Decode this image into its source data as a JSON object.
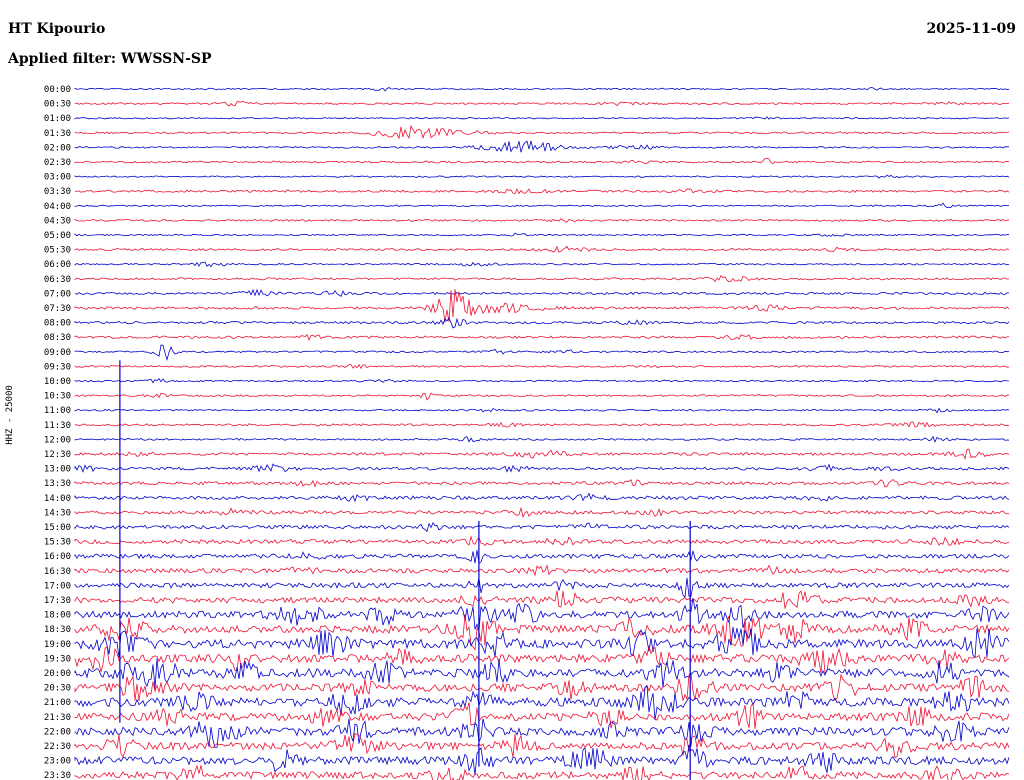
{
  "header": {
    "station": "HT Kipourio",
    "date": "2025-11-09",
    "filter_label": "Applied filter: WWSSN-SP"
  },
  "axis": {
    "left_label": "HHZ - 25000"
  },
  "colors": {
    "blue": "#0000cc",
    "red": "#ee1133",
    "text": "#000000",
    "background": "#ffffff"
  },
  "chart_data": {
    "type": "line",
    "kind": "helicorder-seismogram",
    "title": "HT Kipourio",
    "station": "HT Kipourio",
    "channel": "HHZ",
    "scale": "25000",
    "date": "2025-11-09",
    "filter": "WWSSN-SP",
    "row_interval_minutes": 30,
    "legend": "alternating blue/red half-hour traces, 00:00 top to 23:30 bottom",
    "rows": [
      {
        "label": "00:00",
        "color": "blue",
        "amp": 0.7,
        "events": [
          [
            0.33,
            10,
            1.2
          ],
          [
            0.85,
            8,
            1.0
          ]
        ]
      },
      {
        "label": "00:30",
        "color": "red",
        "amp": 0.9,
        "events": [
          [
            0.17,
            10,
            2.2
          ],
          [
            0.58,
            14,
            1.3
          ],
          [
            0.93,
            10,
            1.4
          ]
        ]
      },
      {
        "label": "01:00",
        "color": "blue",
        "amp": 0.7,
        "events": [
          [
            0.74,
            8,
            1.1
          ]
        ]
      },
      {
        "label": "01:30",
        "color": "red",
        "amp": 0.9,
        "events": [
          [
            0.355,
            22,
            5.5
          ],
          [
            0.4,
            30,
            2.0
          ]
        ]
      },
      {
        "label": "02:00",
        "color": "blue",
        "amp": 0.8,
        "events": [
          [
            0.475,
            25,
            6.5
          ],
          [
            0.6,
            18,
            2.0
          ]
        ]
      },
      {
        "label": "02:30",
        "color": "red",
        "amp": 0.9,
        "events": [
          [
            0.74,
            4,
            4.5
          ],
          [
            0.6,
            12,
            1.2
          ]
        ]
      },
      {
        "label": "03:00",
        "color": "blue",
        "amp": 0.7,
        "events": [
          [
            0.87,
            8,
            1.8
          ]
        ]
      },
      {
        "label": "03:30",
        "color": "red",
        "amp": 1.1,
        "events": [
          [
            0.48,
            20,
            1.6
          ],
          [
            0.66,
            12,
            1.4
          ]
        ]
      },
      {
        "label": "04:00",
        "color": "blue",
        "amp": 0.7,
        "events": [
          [
            0.93,
            7,
            2.2
          ]
        ]
      },
      {
        "label": "04:30",
        "color": "red",
        "amp": 0.9,
        "events": [
          [
            0.52,
            10,
            1.3
          ]
        ]
      },
      {
        "label": "05:00",
        "color": "blue",
        "amp": 0.7,
        "events": [
          [
            0.47,
            9,
            1.4
          ],
          [
            0.81,
            8,
            1.3
          ]
        ]
      },
      {
        "label": "05:30",
        "color": "red",
        "amp": 1.0,
        "events": [
          [
            0.525,
            14,
            2.6
          ],
          [
            0.82,
            10,
            1.8
          ]
        ]
      },
      {
        "label": "06:00",
        "color": "blue",
        "amp": 0.8,
        "events": [
          [
            0.145,
            10,
            2.2
          ],
          [
            0.43,
            12,
            1.8
          ]
        ]
      },
      {
        "label": "06:30",
        "color": "red",
        "amp": 1.0,
        "events": [
          [
            0.7,
            14,
            3.5
          ]
        ]
      },
      {
        "label": "07:00",
        "color": "blue",
        "amp": 1.1,
        "events": [
          [
            0.195,
            11,
            2.6
          ],
          [
            0.28,
            9,
            2.2
          ]
        ]
      },
      {
        "label": "07:30",
        "color": "red",
        "amp": 1.3,
        "events": [
          [
            0.405,
            12,
            17
          ],
          [
            0.45,
            30,
            4.0
          ],
          [
            0.74,
            12,
            2.2
          ]
        ]
      },
      {
        "label": "08:00",
        "color": "blue",
        "amp": 1.1,
        "events": [
          [
            0.405,
            10,
            4.5
          ],
          [
            0.6,
            12,
            1.8
          ]
        ]
      },
      {
        "label": "08:30",
        "color": "red",
        "amp": 1.2,
        "events": [
          [
            0.25,
            10,
            2.2
          ],
          [
            0.71,
            10,
            2.2
          ]
        ]
      },
      {
        "label": "09:00",
        "color": "blue",
        "amp": 0.9,
        "events": [
          [
            0.095,
            6,
            8.5
          ],
          [
            0.45,
            9,
            1.8
          ],
          [
            0.525,
            9,
            1.8
          ]
        ]
      },
      {
        "label": "09:30",
        "color": "red",
        "amp": 0.9,
        "events": [
          [
            0.3,
            9,
            1.5
          ]
        ]
      },
      {
        "label": "10:00",
        "color": "blue",
        "amp": 0.8,
        "events": [
          [
            0.09,
            8,
            1.8
          ],
          [
            0.33,
            8,
            1.4
          ]
        ]
      },
      {
        "label": "10:30",
        "color": "red",
        "amp": 0.9,
        "events": [
          [
            0.375,
            4,
            4.5
          ],
          [
            0.09,
            8,
            1.7
          ]
        ]
      },
      {
        "label": "11:00",
        "color": "blue",
        "amp": 0.8,
        "events": [
          [
            0.44,
            8,
            1.4
          ],
          [
            0.92,
            8,
            1.8
          ]
        ]
      },
      {
        "label": "11:30",
        "color": "red",
        "amp": 1.0,
        "events": [
          [
            0.46,
            9,
            1.8
          ],
          [
            0.9,
            12,
            2.2
          ]
        ]
      },
      {
        "label": "12:00",
        "color": "blue",
        "amp": 0.9,
        "events": [
          [
            0.42,
            9,
            2.2
          ],
          [
            0.92,
            9,
            1.8
          ]
        ]
      },
      {
        "label": "12:30",
        "color": "red",
        "amp": 1.4,
        "events": [
          [
            0.07,
            10,
            2.2
          ],
          [
            0.5,
            18,
            3.5
          ],
          [
            0.955,
            12,
            3.5
          ]
        ]
      },
      {
        "label": "13:00",
        "color": "blue",
        "amp": 1.4,
        "events": [
          [
            0.01,
            8,
            2.6
          ],
          [
            0.21,
            12,
            3.5
          ],
          [
            0.47,
            10,
            2.6
          ],
          [
            0.8,
            8,
            3.5
          ],
          [
            0.87,
            8,
            2.6
          ]
        ]
      },
      {
        "label": "13:30",
        "color": "red",
        "amp": 1.5,
        "events": [
          [
            0.25,
            10,
            2.2
          ],
          [
            0.6,
            10,
            2.2
          ],
          [
            0.87,
            10,
            2.6
          ]
        ]
      },
      {
        "label": "14:00",
        "color": "blue",
        "amp": 1.7,
        "events": [
          [
            0.3,
            10,
            2.6
          ],
          [
            0.55,
            10,
            2.6
          ],
          [
            0.8,
            10,
            2.2
          ]
        ]
      },
      {
        "label": "14:30",
        "color": "red",
        "amp": 1.7,
        "events": [
          [
            0.17,
            10,
            2.6
          ],
          [
            0.48,
            10,
            3.0
          ],
          [
            0.62,
            10,
            2.6
          ]
        ]
      },
      {
        "label": "15:00",
        "color": "blue",
        "amp": 1.9,
        "events": [
          [
            0.38,
            6,
            3.5
          ],
          [
            0.55,
            10,
            2.6
          ]
        ]
      },
      {
        "label": "15:30",
        "color": "red",
        "amp": 2.1,
        "events": [
          [
            0.43,
            9,
            4.5
          ],
          [
            0.52,
            9,
            3.5
          ],
          [
            0.93,
            9,
            3.5
          ]
        ]
      },
      {
        "label": "16:00",
        "color": "blue",
        "amp": 2.1,
        "events": [
          [
            0.43,
            6,
            5.5
          ],
          [
            0.66,
            5,
            4.5
          ],
          [
            0.25,
            9,
            2.6
          ]
        ]
      },
      {
        "label": "16:30",
        "color": "red",
        "amp": 2.3,
        "events": [
          [
            0.245,
            9,
            3.5
          ],
          [
            0.5,
            9,
            3.5
          ],
          [
            0.74,
            9,
            3.5
          ]
        ]
      },
      {
        "label": "17:00",
        "color": "blue",
        "amp": 2.5,
        "events": [
          [
            0.43,
            5,
            7.5
          ],
          [
            0.655,
            5,
            11
          ],
          [
            0.52,
            9,
            3.5
          ]
        ]
      },
      {
        "label": "17:30",
        "color": "red",
        "amp": 2.9,
        "events": [
          [
            0.43,
            10,
            5.5
          ],
          [
            0.52,
            12,
            7.5
          ],
          [
            0.77,
            14,
            7.5
          ],
          [
            0.96,
            10,
            4.5
          ]
        ]
      },
      {
        "label": "18:00",
        "color": "blue",
        "amp": 3.4,
        "events": [
          [
            0.24,
            16,
            9
          ],
          [
            0.33,
            10,
            7.5
          ],
          [
            0.43,
            11,
            13
          ],
          [
            0.48,
            10,
            9
          ],
          [
            0.66,
            7,
            15
          ],
          [
            0.71,
            10,
            11
          ],
          [
            0.97,
            10,
            7.5
          ]
        ]
      },
      {
        "label": "18:30",
        "color": "red",
        "amp": 3.9,
        "events": [
          [
            0.05,
            16,
            11
          ],
          [
            0.43,
            14,
            17
          ],
          [
            0.6,
            10,
            9
          ],
          [
            0.71,
            16,
            15
          ],
          [
            0.77,
            10,
            11
          ],
          [
            0.89,
            14,
            9
          ]
        ]
      },
      {
        "label": "19:00",
        "color": "blue",
        "amp": 4.4,
        "events": [
          [
            0.05,
            14,
            15
          ],
          [
            0.27,
            14,
            11
          ],
          [
            0.45,
            10,
            13
          ],
          [
            0.6,
            11,
            13
          ],
          [
            0.71,
            14,
            17
          ],
          [
            0.97,
            11,
            13
          ]
        ]
      },
      {
        "label": "19:30",
        "color": "red",
        "amp": 3.9,
        "events": [
          [
            0.02,
            16,
            13
          ],
          [
            0.17,
            10,
            9
          ],
          [
            0.35,
            10,
            7.5
          ],
          [
            0.62,
            10,
            11
          ],
          [
            0.8,
            16,
            11
          ],
          [
            0.93,
            10,
            9
          ]
        ]
      },
      {
        "label": "20:00",
        "color": "blue",
        "amp": 4.4,
        "events": [
          [
            0.08,
            18,
            13
          ],
          [
            0.18,
            10,
            9
          ],
          [
            0.33,
            10,
            9
          ],
          [
            0.45,
            10,
            11
          ],
          [
            0.63,
            10,
            13
          ],
          [
            0.75,
            10,
            9
          ],
          [
            0.93,
            10,
            11
          ]
        ]
      },
      {
        "label": "20:30",
        "color": "red",
        "amp": 3.9,
        "events": [
          [
            0.07,
            14,
            11
          ],
          [
            0.3,
            10,
            9
          ],
          [
            0.53,
            10,
            9
          ],
          [
            0.66,
            11,
            13
          ],
          [
            0.82,
            10,
            11
          ],
          [
            0.96,
            10,
            9
          ]
        ]
      },
      {
        "label": "21:00",
        "color": "blue",
        "amp": 4.4,
        "events": [
          [
            0.13,
            10,
            9
          ],
          [
            0.29,
            11,
            13
          ],
          [
            0.43,
            10,
            9
          ],
          [
            0.62,
            14,
            15
          ],
          [
            0.77,
            10,
            9
          ],
          [
            0.94,
            10,
            13
          ]
        ]
      },
      {
        "label": "21:30",
        "color": "red",
        "amp": 3.9,
        "events": [
          [
            0.1,
            10,
            9
          ],
          [
            0.27,
            10,
            7.5
          ],
          [
            0.42,
            10,
            11
          ],
          [
            0.57,
            10,
            9
          ],
          [
            0.72,
            10,
            11
          ],
          [
            0.9,
            10,
            9
          ]
        ]
      },
      {
        "label": "22:00",
        "color": "blue",
        "amp": 4.1,
        "events": [
          [
            0.15,
            14,
            13
          ],
          [
            0.3,
            10,
            11
          ],
          [
            0.43,
            10,
            11
          ],
          [
            0.57,
            10,
            9
          ],
          [
            0.66,
            10,
            11
          ],
          [
            0.94,
            11,
            13
          ]
        ]
      },
      {
        "label": "22:30",
        "color": "red",
        "amp": 3.7,
        "events": [
          [
            0.05,
            10,
            9
          ],
          [
            0.3,
            14,
            11
          ],
          [
            0.47,
            10,
            9
          ],
          [
            0.66,
            10,
            9
          ],
          [
            0.88,
            10,
            9
          ]
        ]
      },
      {
        "label": "23:00",
        "color": "blue",
        "amp": 3.9,
        "events": [
          [
            0.22,
            10,
            9
          ],
          [
            0.43,
            10,
            11
          ],
          [
            0.55,
            14,
            11
          ],
          [
            0.66,
            8,
            15
          ],
          [
            0.8,
            10,
            9
          ]
        ]
      },
      {
        "label": "23:30",
        "color": "red",
        "amp": 3.5,
        "events": [
          [
            0.13,
            10,
            7.5
          ],
          [
            0.4,
            10,
            9
          ],
          [
            0.6,
            10,
            9
          ],
          [
            0.77,
            10,
            7.5
          ],
          [
            0.93,
            10,
            7.5
          ]
        ]
      }
    ],
    "artifact_lines": [
      {
        "pos": 0.048,
        "from": 19,
        "to": 43,
        "color": "blue"
      },
      {
        "pos": 0.432,
        "from": 30,
        "to": 46,
        "color": "blue"
      },
      {
        "pos": 0.658,
        "from": 30,
        "to": 47,
        "color": "blue"
      }
    ]
  }
}
